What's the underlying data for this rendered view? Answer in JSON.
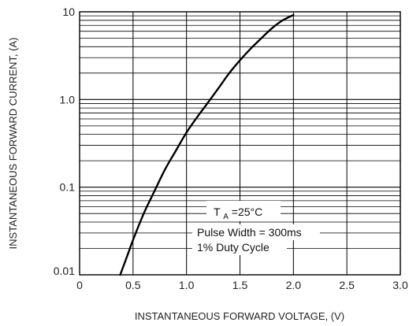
{
  "chart_data": {
    "type": "line",
    "title": "",
    "xlabel": "INSTANTANEOUS FORWARD VOLTAGE, (V)",
    "ylabel": "INSTANTANEOUS FORWARD CURRENT, (A)",
    "x_scale": "linear",
    "y_scale": "log",
    "xlim": [
      0,
      3.0
    ],
    "ylim": [
      0.01,
      10
    ],
    "x_ticks": [
      0,
      0.5,
      1.0,
      1.5,
      2.0,
      2.5,
      3.0
    ],
    "x_tick_labels": [
      "0",
      "0.5",
      "1.0",
      "1.5",
      "2.0",
      "2.5",
      "3.0"
    ],
    "y_ticks": [
      0.01,
      0.1,
      1.0,
      10
    ],
    "y_tick_labels": [
      "0.01",
      "0.1",
      "1.0",
      "10"
    ],
    "grid": true,
    "series": [
      {
        "color": "#000000",
        "x": [
          0.38,
          0.45,
          0.5,
          0.6,
          0.7,
          0.8,
          0.9,
          1.0,
          1.1,
          1.2,
          1.3,
          1.4,
          1.5,
          1.6,
          1.7,
          1.8,
          1.9,
          2.0
        ],
        "y": [
          0.01,
          0.017,
          0.025,
          0.05,
          0.09,
          0.16,
          0.26,
          0.42,
          0.63,
          0.92,
          1.35,
          2.0,
          2.8,
          3.8,
          5.0,
          6.5,
          8.0,
          9.2
        ]
      }
    ],
    "annotations": [
      {
        "id": "ta",
        "main": "T",
        "sub": "A",
        "rest": " =25°C"
      },
      {
        "id": "pulse",
        "text": "Pulse Width = 300ms"
      },
      {
        "id": "duty",
        "text": "1% Duty Cycle"
      }
    ]
  }
}
